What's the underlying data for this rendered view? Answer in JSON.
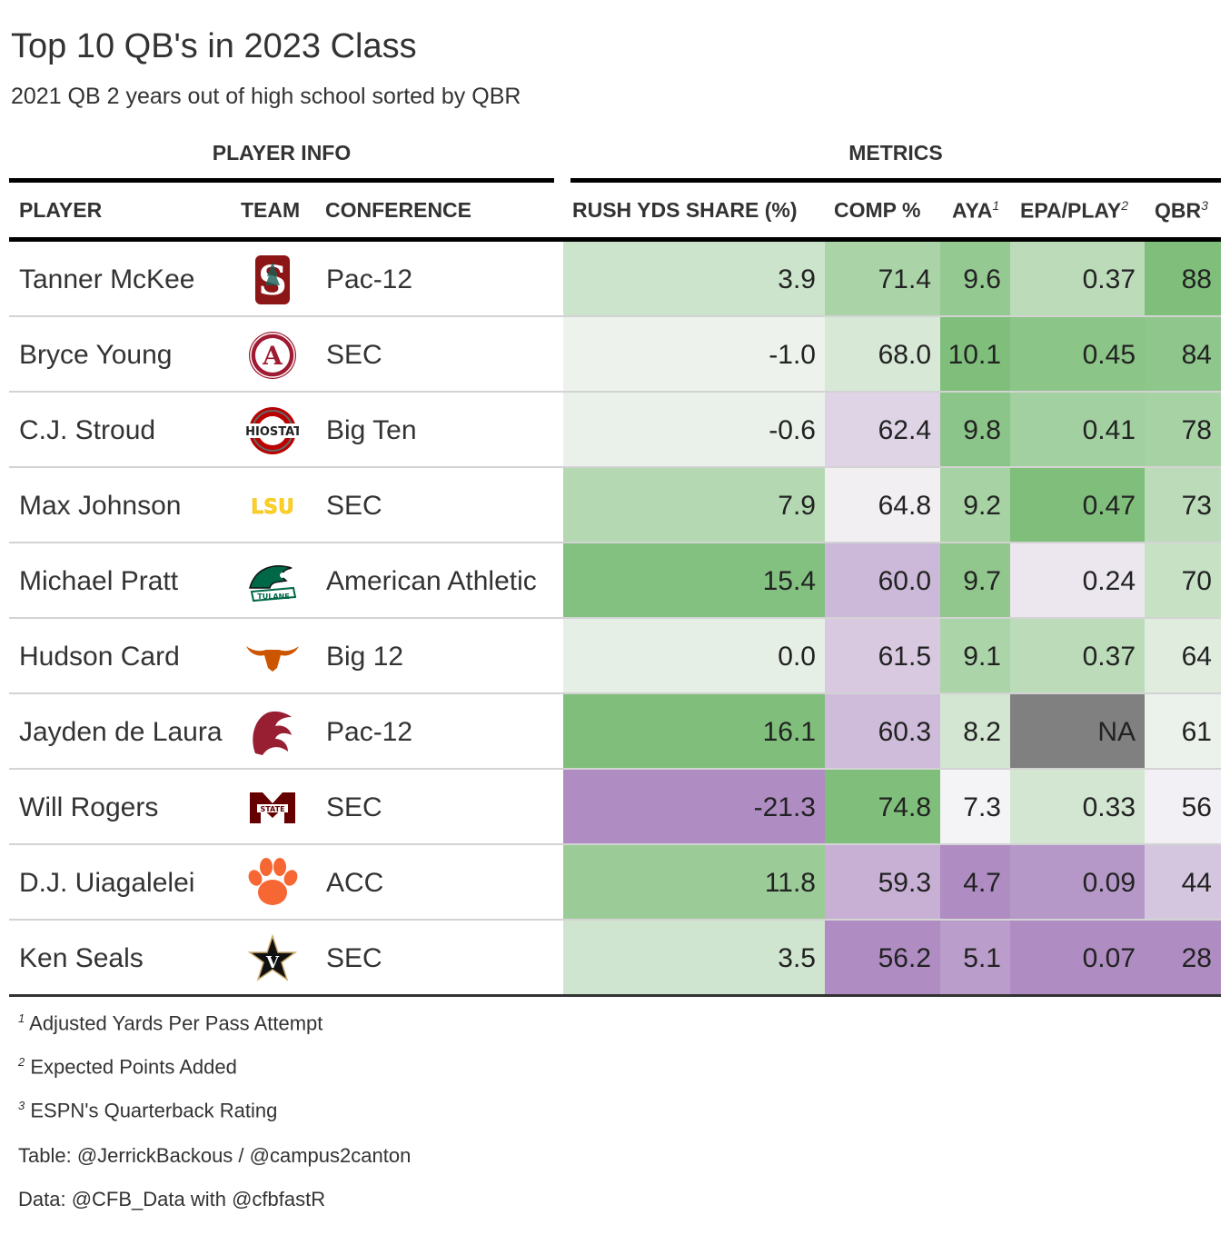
{
  "title": "Top 10 QB's in 2023 Class",
  "subtitle": "2021 QB 2 years out of high school sorted by QBR",
  "spanners": {
    "player_info": "PLAYER INFO",
    "metrics": "METRICS"
  },
  "columns": {
    "player": "PLAYER",
    "team": "TEAM",
    "conference": "CONFERENCE",
    "rush": "RUSH YDS SHARE (%)",
    "comp": "COMP %",
    "aya": "AYA",
    "aya_mark": "1",
    "epa": "EPA/PLAY",
    "epa_mark": "2",
    "qbr": "QBR",
    "qbr_mark": "3"
  },
  "palette": {
    "negative_max": "#af8dc3",
    "neutral": "#f7f7f7",
    "positive_max": "#7fbf7b",
    "na": "#808080"
  },
  "chart_data": {
    "type": "table",
    "title": "Top 10 QB's in 2023 Class",
    "rows": [
      {
        "player": "Tanner McKee",
        "team_icon": "stanford-s-logo-icon",
        "conference": "Pac-12",
        "rush": "3.9",
        "comp": "71.4",
        "aya": "9.6",
        "epa": "0.37",
        "qbr": "88"
      },
      {
        "player": "Bryce Young",
        "team_icon": "alabama-a-logo-icon",
        "conference": "SEC",
        "rush": "-1.0",
        "comp": "68.0",
        "aya": "10.1",
        "epa": "0.45",
        "qbr": "84"
      },
      {
        "player": "C.J. Stroud",
        "team_icon": "ohio-state-logo-icon",
        "conference": "Big Ten",
        "rush": "-0.6",
        "comp": "62.4",
        "aya": "9.8",
        "epa": "0.41",
        "qbr": "78"
      },
      {
        "player": "Max Johnson",
        "team_icon": "lsu-logo-icon",
        "conference": "SEC",
        "rush": "7.9",
        "comp": "64.8",
        "aya": "9.2",
        "epa": "0.47",
        "qbr": "73"
      },
      {
        "player": "Michael Pratt",
        "team_icon": "tulane-wave-logo-icon",
        "conference": "American Athletic",
        "rush": "15.4",
        "comp": "60.0",
        "aya": "9.7",
        "epa": "0.24",
        "qbr": "70"
      },
      {
        "player": "Hudson Card",
        "team_icon": "texas-longhorn-logo-icon",
        "conference": "Big 12",
        "rush": "0.0",
        "comp": "61.5",
        "aya": "9.1",
        "epa": "0.37",
        "qbr": "64"
      },
      {
        "player": "Jayden de Laura",
        "team_icon": "washington-state-cougar-logo-icon",
        "conference": "Pac-12",
        "rush": "16.1",
        "comp": "60.3",
        "aya": "8.2",
        "epa": "NA",
        "qbr": "61"
      },
      {
        "player": "Will Rogers",
        "team_icon": "mississippi-state-m-logo-icon",
        "conference": "SEC",
        "rush": "-21.3",
        "comp": "74.8",
        "aya": "7.3",
        "epa": "0.33",
        "qbr": "56"
      },
      {
        "player": "D.J. Uiagalelei",
        "team_icon": "clemson-paw-logo-icon",
        "conference": "ACC",
        "rush": "11.8",
        "comp": "59.3",
        "aya": "4.7",
        "epa": "0.09",
        "qbr": "44"
      },
      {
        "player": "Ken Seals",
        "team_icon": "vanderbilt-star-logo-icon",
        "conference": "SEC",
        "rush": "3.5",
        "comp": "56.2",
        "aya": "5.1",
        "epa": "0.07",
        "qbr": "28"
      }
    ],
    "color_domains": {
      "rush": [
        -21.3,
        16.1
      ],
      "comp": [
        56.2,
        74.8
      ],
      "aya": [
        4.7,
        10.1
      ],
      "epa": [
        0.07,
        0.47
      ],
      "qbr": [
        28,
        88
      ]
    }
  },
  "footnotes": [
    {
      "mark": "1",
      "text": "Adjusted Yards Per Pass Attempt"
    },
    {
      "mark": "2",
      "text": "Expected Points Added"
    },
    {
      "mark": "3",
      "text": "ESPN's Quarterback Rating"
    }
  ],
  "source_notes": [
    "Table: @JerrickBackous / @campus2canton",
    "Data: @CFB_Data with @cfbfastR"
  ]
}
